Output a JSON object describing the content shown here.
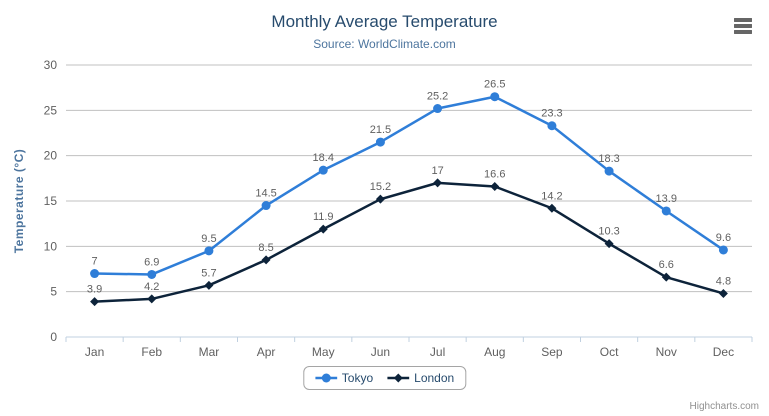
{
  "chart_data": {
    "type": "line",
    "title": "Monthly Average Temperature",
    "subtitle": "Source: WorldClimate.com",
    "categories": [
      "Jan",
      "Feb",
      "Mar",
      "Apr",
      "May",
      "Jun",
      "Jul",
      "Aug",
      "Sep",
      "Oct",
      "Nov",
      "Dec"
    ],
    "series": [
      {
        "name": "Tokyo",
        "color": "#2f7ed8",
        "marker": "circle",
        "values": [
          7,
          6.9,
          9.5,
          14.5,
          18.4,
          21.5,
          25.2,
          26.5,
          23.3,
          18.3,
          13.9,
          9.6
        ]
      },
      {
        "name": "London",
        "color": "#0d233a",
        "marker": "diamond",
        "values": [
          3.9,
          4.2,
          5.7,
          8.5,
          11.9,
          15.2,
          17,
          16.6,
          14.2,
          10.3,
          6.6,
          4.8
        ]
      }
    ],
    "xlabel": "",
    "ylabel": "Temperature (°C)",
    "ylim": [
      0,
      30
    ],
    "yticks": [
      0,
      5,
      10,
      15,
      20,
      25,
      30
    ],
    "grid": true,
    "data_labels": true,
    "legend_position": "bottom-center"
  },
  "menu": {
    "icon": "hamburger-icon",
    "bars": 3
  },
  "credits": {
    "label": "Highcharts.com"
  },
  "colors": {
    "title": "#274b6d",
    "subtitle": "#4d759e",
    "axis_title": "#4d759e",
    "axis_label": "#606060",
    "data_label": "#606060",
    "gridline": "#c0c0c0",
    "axis_line": "#c0d0e0",
    "legend_text": "#274b6d",
    "legend_border": "#a5a5a5",
    "credits": "#909090",
    "background": "#ffffff"
  }
}
